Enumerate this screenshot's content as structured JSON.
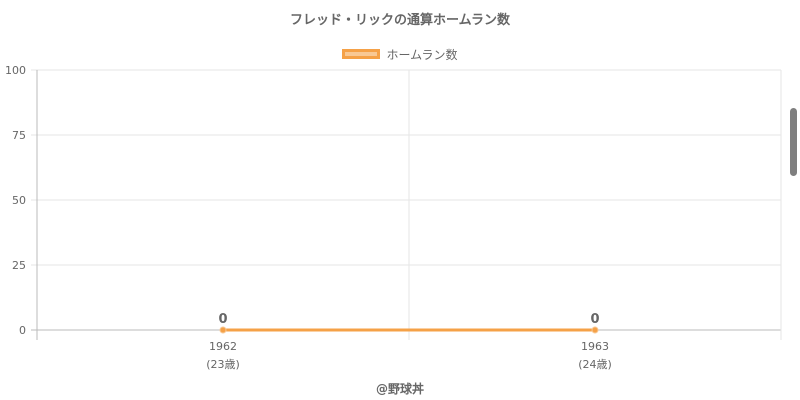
{
  "chart_data": {
    "type": "line",
    "title": "フレッド・リックの通算ホームラン数",
    "categories": [
      "1962",
      "1963"
    ],
    "category_sublabels": [
      "(23歳)",
      "(24歳)"
    ],
    "series": [
      {
        "name": "ホームラン数",
        "values": [
          0,
          0
        ],
        "color": "#f5a147"
      }
    ],
    "data_labels": [
      "0",
      "0"
    ],
    "ylim": [
      0,
      100
    ],
    "yticks": [
      0,
      25,
      50,
      75,
      100
    ],
    "grid": true,
    "legend_position": "top"
  },
  "credit": "@野球丼",
  "colors": {
    "series": "#f5a147",
    "series_fill": "#f8c894",
    "grid": "#e5e5e5",
    "text": "#666666"
  }
}
